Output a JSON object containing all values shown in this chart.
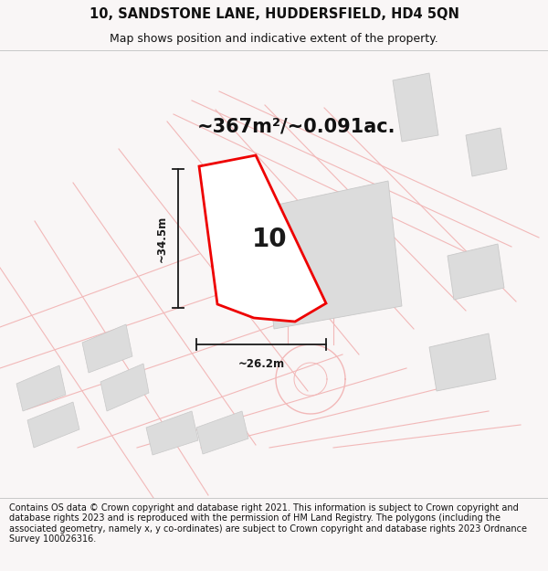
{
  "title_line1": "10, SANDSTONE LANE, HUDDERSFIELD, HD4 5QN",
  "title_line2": "Map shows position and indicative extent of the property.",
  "area_label": "~367m²/~0.091ac.",
  "dim_height": "~34.5m",
  "dim_width": "~26.2m",
  "plot_number": "10",
  "footer": "Contains OS data © Crown copyright and database right 2021. This information is subject to Crown copyright and database rights 2023 and is reproduced with the permission of HM Land Registry. The polygons (including the associated geometry, namely x, y co-ordinates) are subject to Crown copyright and database rights 2023 Ordnance Survey 100026316.",
  "bg_color": "#f9f6f6",
  "map_bg": "#faf8f8",
  "road_color": "#f2b8b8",
  "plot_line_color": "#e8b0b0",
  "building_fill": "#dcdcdc",
  "building_edge": "#c8c8c8",
  "highlight_fill": "#ffffff",
  "highlight_stroke": "#ee0000",
  "dim_color": "#1a1a1a",
  "title_color": "#111111",
  "footer_color": "#111111",
  "title_fontsize": 10.5,
  "subtitle_fontsize": 9,
  "area_fontsize": 15,
  "plot_num_fontsize": 20,
  "dim_fontsize": 8.5,
  "footer_fontsize": 7.0
}
